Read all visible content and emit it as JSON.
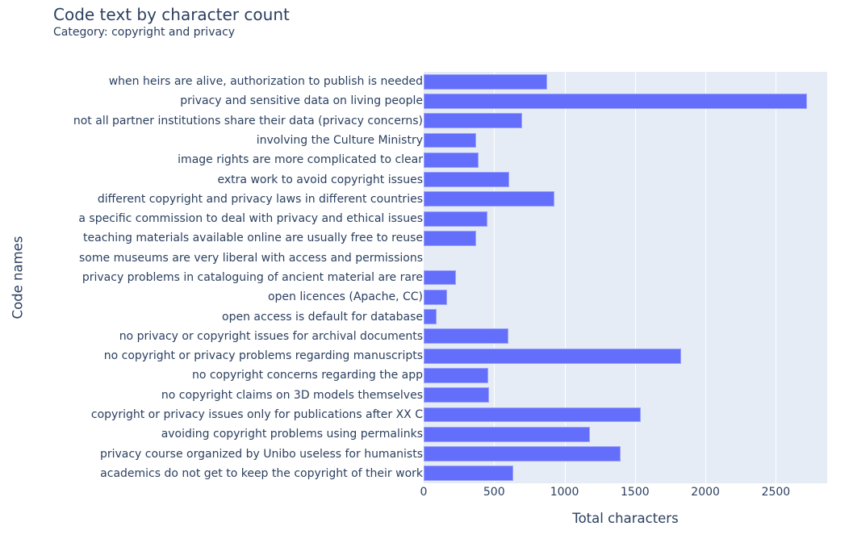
{
  "chart": {
    "title": "Code text by character count",
    "subtitle": "Category: copyright and privacy",
    "xaxis_title": "Total characters",
    "yaxis_title": "Code names",
    "xticks": [
      "0",
      "500",
      "1000",
      "1500",
      "2000",
      "2500"
    ],
    "bar_color": "#636efa",
    "plot_bg": "#e5ecf6",
    "text_color": "#2a3f5f"
  },
  "chart_data": {
    "type": "bar",
    "orientation": "horizontal",
    "title": "Code text by character count",
    "subtitle": "Category: copyright and privacy",
    "xlabel": "Total characters",
    "ylabel": "Code names",
    "xlim": [
      0,
      2865
    ],
    "xticks": [
      0,
      500,
      1000,
      1500,
      2000,
      2500
    ],
    "grid": true,
    "legend": null,
    "categories": [
      "when heirs are alive, authorization to publish is needed",
      "privacy and sensitive data on living people",
      "not all partner institutions share their data (privacy concerns)",
      "involving the Culture Ministry",
      "image rights are more complicated to clear",
      "extra work to avoid copyright issues",
      "different copyright and privacy laws in different countries",
      "a specific commission to deal with privacy and ethical issues",
      "teaching materials available online are usually free to reuse",
      "some museums are very liberal with access and permissions",
      "privacy problems in cataloguing of ancient material are rare",
      "open licences (Apache, CC)",
      "open access is default for database",
      "no privacy or copyright issues for archival documents",
      "no copyright or privacy problems regarding manuscripts",
      "no copyright concerns regarding the app",
      "no copyright claims on 3D models themselves",
      "copyright or privacy issues only for publications after XX C",
      "avoiding copyright problems using permalinks",
      "privacy course organized by Unibo useless for humanists",
      "academics do not get to keep the copyright of their work"
    ],
    "values": [
      879,
      2719,
      701,
      372,
      387,
      607,
      928,
      455,
      375,
      0,
      229,
      166,
      94,
      602,
      1830,
      458,
      466,
      1539,
      1180,
      1398,
      636
    ]
  }
}
